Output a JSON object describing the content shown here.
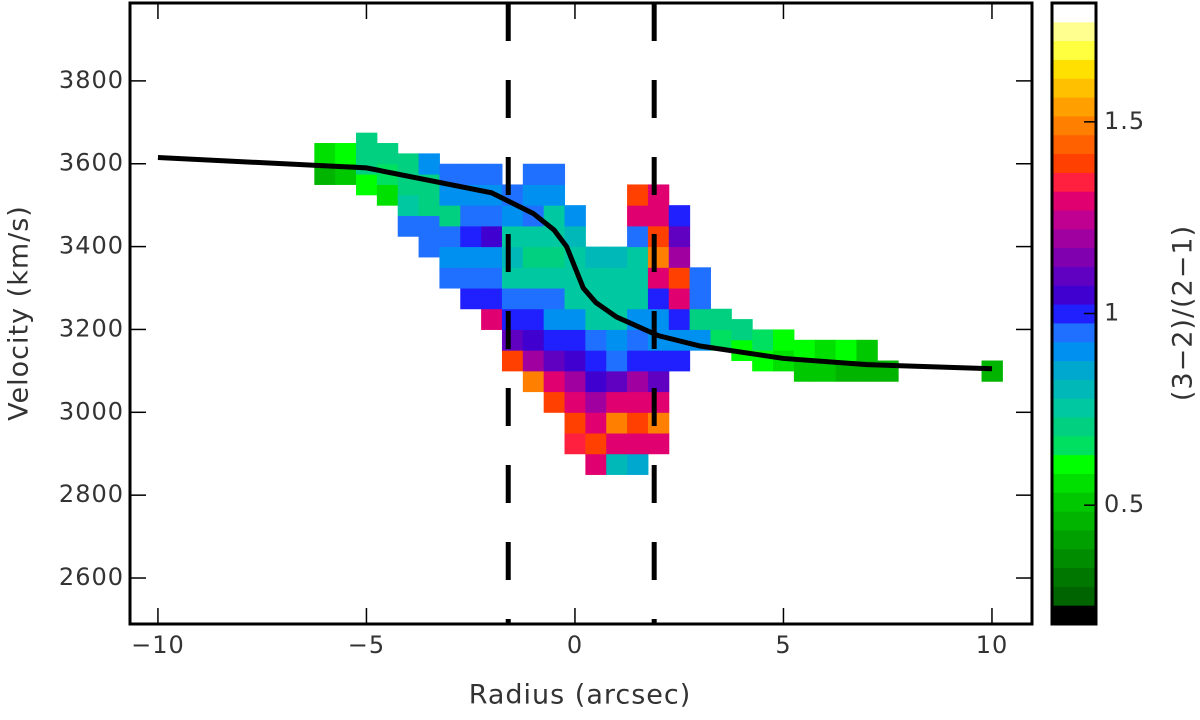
{
  "chart_data": {
    "type": "heatmap",
    "x_label": "Radius (arcsec)",
    "y_label": "Velocity (km/s)",
    "colorbar_label": "(3−2)/(2−1)",
    "xlim": [
      -10.67,
      10.96
    ],
    "ylim": [
      2489,
      3988
    ],
    "xticks": [
      {
        "value": -10,
        "label": "−10"
      },
      {
        "value": -5,
        "label": "−5"
      },
      0,
      5,
      10
    ],
    "yticks": [
      2600,
      2800,
      3000,
      3200,
      3400,
      3600,
      3800
    ],
    "clim": [
      0.19,
      1.81
    ],
    "cticks": [
      0.5,
      1.0,
      1.5
    ],
    "colormap": [
      "#000000",
      "#006400",
      "#007800",
      "#008c00",
      "#00a000",
      "#00b400",
      "#00c800",
      "#00e000",
      "#00ff00",
      "#00e060",
      "#00d080",
      "#00c8a0",
      "#00b8b8",
      "#00a8d0",
      "#0090f0",
      "#2070ff",
      "#2020ff",
      "#4000d0",
      "#6000c0",
      "#8000b0",
      "#a000a0",
      "#c00090",
      "#e00070",
      "#ff2040",
      "#ff4000",
      "#ff6000",
      "#ff8000",
      "#ffa000",
      "#ffc000",
      "#ffe000",
      "#ffff40",
      "#ffff90",
      "#ffffff"
    ],
    "columns": [
      {
        "x": -6,
        "v0": 3575,
        "ratios": [
          0.45,
          0.55
        ]
      },
      {
        "x": -5.5,
        "v0": 3575,
        "ratios": [
          0.5,
          0.6
        ]
      },
      {
        "x": -5,
        "v0": 3550,
        "ratios": [
          0.6,
          0.7,
          0.7
        ]
      },
      {
        "x": -4.5,
        "v0": 3525,
        "ratios": [
          0.55,
          0.65,
          0.7
        ]
      },
      {
        "x": -4,
        "v0": 3450,
        "ratios": [
          0.95,
          0.75,
          0.7,
          0.7
        ]
      },
      {
        "x": -3.5,
        "v0": 3400,
        "ratios": [
          0.95,
          0.95,
          0.7,
          0.7,
          0.9
        ]
      },
      {
        "x": -3,
        "v0": 3325,
        "ratios": [
          0.95,
          0.9,
          0.95,
          0.7,
          0.9,
          0.95
        ]
      },
      {
        "x": -2.5,
        "v0": 3275,
        "ratios": [
          1.0,
          0.95,
          0.9,
          1.0,
          0.95,
          0.9,
          0.95
        ]
      },
      {
        "x": -2,
        "v0": 3225,
        "ratios": [
          1.3,
          1.0,
          0.95,
          0.9,
          1.05,
          0.95,
          0.9,
          0.95
        ]
      },
      {
        "x": -1.5,
        "v0": 3125,
        "ratios": [
          1.4,
          1.1,
          1.0,
          0.95,
          0.75,
          0.8,
          0.75,
          0.9,
          0.95
        ]
      },
      {
        "x": -1,
        "v0": 3075,
        "ratios": [
          1.5,
          1.2,
          1.05,
          1.0,
          0.95,
          0.75,
          0.7,
          0.75,
          0.95,
          0.9,
          0.95
        ]
      },
      {
        "x": -0.5,
        "v0": 3025,
        "ratios": [
          1.4,
          1.3,
          1.1,
          1.0,
          0.9,
          0.95,
          0.75,
          0.7,
          0.75,
          0.75,
          0.9,
          0.95
        ]
      },
      {
        "x": 0,
        "v0": 2925,
        "ratios": [
          1.35,
          1.4,
          1.3,
          1.2,
          1.05,
          1.0,
          0.9,
          0.75,
          0.75,
          0.75,
          0.8,
          0.9
        ]
      },
      {
        "x": 0.5,
        "v0": 2875,
        "ratios": [
          1.3,
          1.4,
          1.3,
          1.2,
          1.05,
          1.0,
          0.95,
          0.75,
          0.75,
          0.75,
          0.8
        ]
      },
      {
        "x": 1,
        "v0": 2875,
        "ratios": [
          0.8,
          1.3,
          1.5,
          1.3,
          1.1,
          0.95,
          0.9,
          0.75,
          0.75,
          0.75,
          0.8
        ]
      },
      {
        "x": 1.5,
        "v0": 2875,
        "ratios": [
          0.85,
          1.3,
          1.4,
          1.3,
          1.2,
          1.0,
          0.95,
          0.9,
          0.75,
          0.75,
          0.75,
          0.95,
          1.3,
          1.4
        ]
      },
      {
        "x": 2,
        "v0": 2925,
        "ratios": [
          1.3,
          1.5,
          1.3,
          1.1,
          1.0,
          0.9,
          0.9,
          1.0,
          1.3,
          1.5,
          1.4,
          1.3,
          1.3
        ]
      },
      {
        "x": 2.5,
        "v0": 3125,
        "ratios": [
          1.0,
          0.9,
          1.0,
          1.3,
          1.4,
          1.2,
          1.1,
          1.0
        ]
      },
      {
        "x": 3,
        "v0": 3175,
        "ratios": [
          0.9,
          0.7,
          0.95,
          0.95
        ]
      },
      {
        "x": 3.5,
        "v0": 3175,
        "ratios": [
          0.65,
          0.7
        ]
      },
      {
        "x": 4,
        "v0": 3150,
        "ratios": [
          0.6,
          0.7
        ]
      },
      {
        "x": 4.5,
        "v0": 3125,
        "ratios": [
          0.6,
          0.65
        ]
      },
      {
        "x": 5,
        "v0": 3125,
        "ratios": [
          0.55,
          0.6
        ]
      },
      {
        "x": 5.5,
        "v0": 3100,
        "ratios": [
          0.5,
          0.6
        ]
      },
      {
        "x": 6,
        "v0": 3100,
        "ratios": [
          0.5,
          0.55
        ]
      },
      {
        "x": 6.5,
        "v0": 3100,
        "ratios": [
          0.45,
          0.6
        ]
      },
      {
        "x": 7,
        "v0": 3100,
        "ratios": [
          0.45,
          0.5
        ]
      },
      {
        "x": 7.5,
        "v0": 3100,
        "ratios": [
          0.45
        ]
      },
      {
        "x": 10,
        "v0": 3100,
        "ratios": [
          0.45
        ]
      }
    ],
    "curve": {
      "x": [
        -10,
        -5,
        -2,
        -1,
        -0.5,
        -0.2,
        0,
        0.2,
        0.5,
        1,
        2,
        3,
        5,
        7,
        10
      ],
      "y": [
        3615,
        3590,
        3530,
        3480,
        3440,
        3400,
        3350,
        3300,
        3265,
        3230,
        3185,
        3160,
        3130,
        3115,
        3105
      ]
    },
    "vlines": [
      -1.6,
      1.9
    ]
  }
}
